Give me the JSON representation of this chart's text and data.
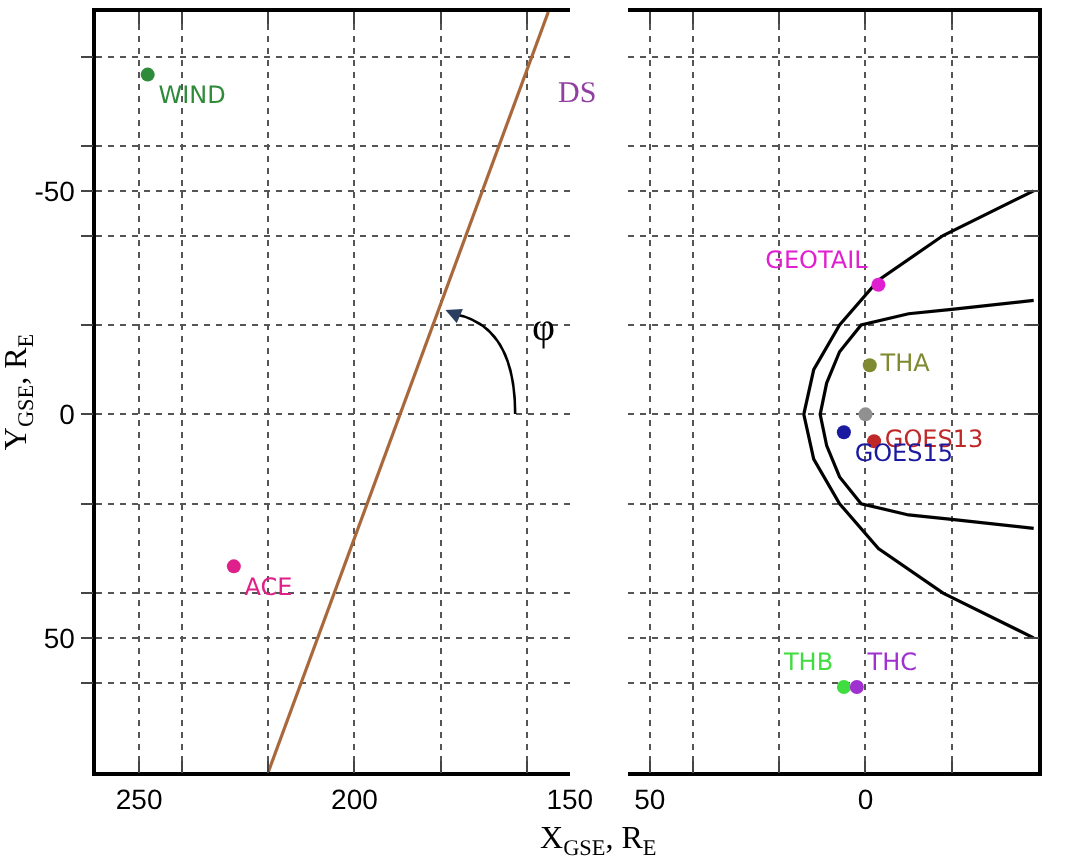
{
  "chart_data": [
    {
      "type": "scatter",
      "xlabel": "X$_{GSE}$, R$_{E}$",
      "ylabel": "Y$_{GSE}$, R$_{E}$",
      "xlim": [
        260,
        150
      ],
      "xticks": [
        250,
        {
          "value": 240,
          "label": null
        },
        {
          "value": 220,
          "label": null
        },
        200,
        {
          "value": 180,
          "label": null
        },
        {
          "value": 160,
          "label": null
        },
        150
      ],
      "ylim": [
        80,
        -90
      ],
      "yticks": [
        {
          "value": -80,
          "label": null
        },
        {
          "value": -60,
          "label": null
        },
        -50,
        {
          "value": -40,
          "label": null
        },
        {
          "value": -20,
          "label": null
        },
        0,
        {
          "value": 20,
          "label": null
        },
        {
          "value": 40,
          "label": null
        },
        50,
        {
          "value": 60,
          "label": null
        }
      ],
      "grid": true,
      "marker": "circle",
      "annotations": [
        "DS",
        "φ"
      ],
      "series": [
        {
          "name": "WIND",
          "color": "#2e8b3a",
          "x": [
            248
          ],
          "values": [
            -76
          ]
        },
        {
          "name": "ACE",
          "color": "#e0208a",
          "x": [
            228
          ],
          "values": [
            34
          ]
        },
        {
          "type": "line",
          "marker": "none",
          "color": "#a8683c",
          "line_style": "solid",
          "x": [
            220,
            155
          ],
          "values": [
            80,
            -90
          ]
        }
      ]
    },
    {
      "type": "scatter",
      "tick_labels": "x",
      "xlim": [
        55,
        -40
      ],
      "xticks": [
        50,
        {
          "value": 40,
          "label": null
        },
        {
          "value": 20,
          "label": null
        },
        0,
        {
          "value": -20,
          "label": null
        }
      ],
      "ylim": [
        80,
        -90
      ],
      "yticks": [
        {
          "value": -80,
          "label": null
        },
        {
          "value": -60,
          "label": null
        },
        {
          "value": -50,
          "label": null
        },
        {
          "value": -40,
          "label": null
        },
        {
          "value": -20,
          "label": null
        },
        {
          "value": 0,
          "label": null
        },
        {
          "value": 20,
          "label": null
        },
        {
          "value": 40,
          "label": null
        },
        {
          "value": 50,
          "label": null
        },
        {
          "value": 60,
          "label": null
        }
      ],
      "grid": true,
      "marker": "circle",
      "series": [
        {
          "type": "line",
          "marker": "none",
          "color": "#000000",
          "line_style": "solid",
          "x": [
            -39,
            -18,
            -3,
            6,
            12,
            14.3,
            12,
            6,
            -3,
            -18,
            -39
          ],
          "values": [
            -50,
            -40,
            -30,
            -20,
            -10,
            0,
            10,
            20,
            30,
            40,
            50
          ]
        },
        {
          "type": "line",
          "marker": "none",
          "color": "#000000",
          "line_style": "solid",
          "x": [
            -39,
            -20,
            -10,
            1,
            6,
            9,
            10.5,
            9,
            6,
            1,
            -10,
            -20,
            -39
          ],
          "values": [
            -25.5,
            -23.5,
            -22.5,
            -20,
            -14,
            -7,
            0,
            7,
            14,
            20,
            22.5,
            23.5,
            25.5
          ]
        },
        {
          "color": "#909090",
          "x": [
            0
          ],
          "values": [
            0
          ]
        },
        {
          "name": "GEOTAIL",
          "color": "#e020d0",
          "x": [
            -3
          ],
          "values": [
            -29
          ]
        },
        {
          "name": "THA",
          "color": "#7f8a30",
          "x": [
            -1
          ],
          "values": [
            -11
          ]
        },
        {
          "name": "GOES13",
          "color": "#c02828",
          "x": [
            -2
          ],
          "values": [
            6
          ]
        },
        {
          "name": "GOES15",
          "color": "#1a1aa0",
          "x": [
            5
          ],
          "values": [
            4
          ]
        },
        {
          "name": "THB",
          "color": "#40dd40",
          "x": [
            5
          ],
          "values": [
            61
          ]
        },
        {
          "name": "THC",
          "color": "#a030d0",
          "x": [
            2
          ],
          "values": [
            61
          ]
        }
      ]
    }
  ]
}
